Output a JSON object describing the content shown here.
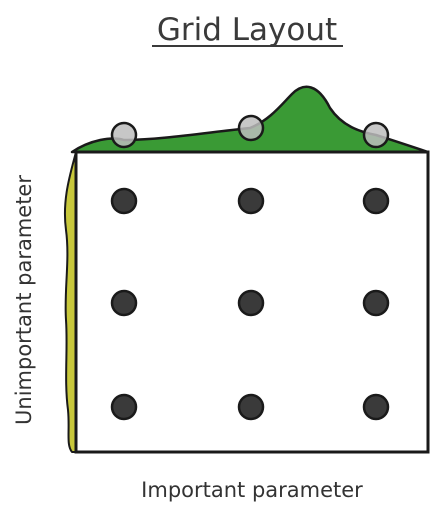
{
  "title": "Grid Layout",
  "axes": {
    "x_label": "Important parameter",
    "y_label": "Unimportant parameter"
  },
  "colors": {
    "important_curve_fill": "#3a9a35",
    "unimportant_curve_fill": "#c8c83c",
    "grid_point_fill": "#3a3a3a",
    "projected_point_fill": "#bdbdbd",
    "outline": "#1a1a1a"
  },
  "grid": {
    "rows": 3,
    "cols": 3,
    "x_values": [
      1,
      2,
      3
    ],
    "y_values": [
      1,
      2,
      3
    ]
  }
}
